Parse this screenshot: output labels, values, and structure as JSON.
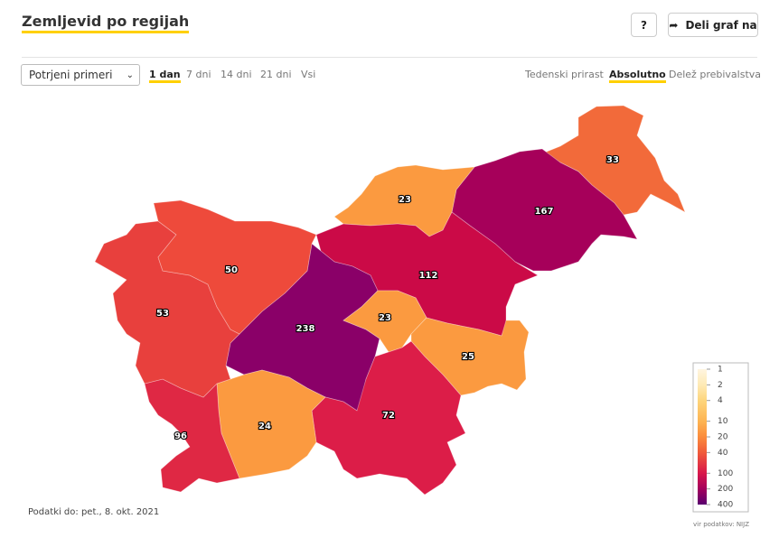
{
  "header": {
    "title": "Zemljevid po regijah",
    "help_button": "?",
    "share_button": "Deli graf na"
  },
  "controls": {
    "dropdown": "Potrjeni primeri",
    "period_tabs": [
      {
        "label": "1 dan",
        "active": true
      },
      {
        "label": "7 dni",
        "active": false
      },
      {
        "label": "14 dni",
        "active": false
      },
      {
        "label": "21 dni",
        "active": false
      },
      {
        "label": "Vsi",
        "active": false
      }
    ],
    "mode_tabs": [
      {
        "label": "Tedenski prirast",
        "active": false
      },
      {
        "label": "Absolutno",
        "active": true
      },
      {
        "label": "Delež prebivalstva",
        "active": false
      }
    ]
  },
  "map": {
    "regions": [
      {
        "value": 33,
        "color": "#f26a3a"
      },
      {
        "value": 167,
        "color": "#a6005a"
      },
      {
        "value": 23,
        "color": "#fb9a40"
      },
      {
        "value": 112,
        "color": "#cb0a47"
      },
      {
        "value": 238,
        "color": "#8a0068"
      },
      {
        "value": 23,
        "color": "#fb9a40"
      },
      {
        "value": 25,
        "color": "#fb9a40"
      },
      {
        "value": 72,
        "color": "#dc1d48"
      },
      {
        "value": 24,
        "color": "#fb9a40"
      },
      {
        "value": 96,
        "color": "#df2844"
      },
      {
        "value": 53,
        "color": "#e8403d"
      },
      {
        "value": 50,
        "color": "#ee4a3b"
      }
    ]
  },
  "legend": {
    "ticks": [
      1,
      2,
      4,
      10,
      20,
      40,
      100,
      200,
      400
    ],
    "log_scale": true,
    "colors": [
      "#fff5e0",
      "#feeab5",
      "#fdd57c",
      "#fdb452",
      "#fb8c3c",
      "#f05a3a",
      "#d8174a",
      "#a3005c",
      "#5a0070"
    ]
  },
  "footer": {
    "updated": "Podatki do: pet., 8. okt. 2021",
    "source": "vir podatkov: NIJZ"
  }
}
